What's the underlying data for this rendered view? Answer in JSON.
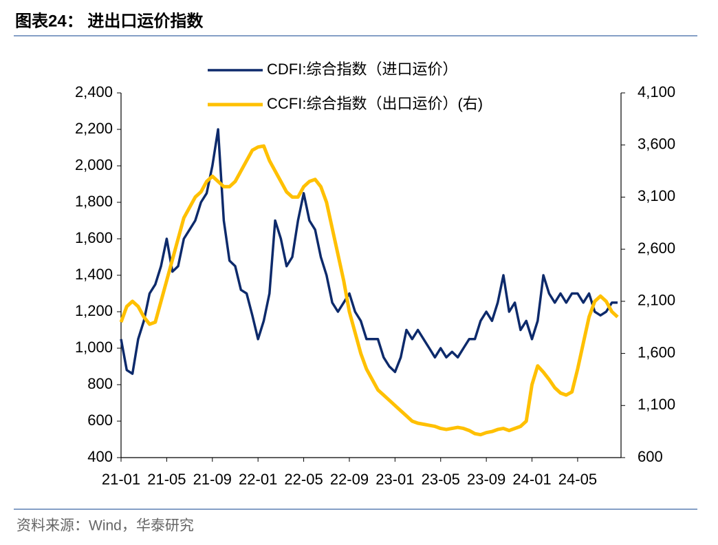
{
  "chart_data": {
    "type": "line",
    "title": "图表24：  进出口运价指数",
    "source": "资料来源：Wind，华泰研究",
    "categories": [
      "21-01",
      null,
      null,
      null,
      null,
      null,
      null,
      null,
      "21-05",
      null,
      null,
      null,
      null,
      null,
      null,
      null,
      "21-09",
      null,
      null,
      null,
      null,
      null,
      null,
      null,
      "22-01",
      null,
      null,
      null,
      null,
      null,
      null,
      null,
      "22-05",
      null,
      null,
      null,
      null,
      null,
      null,
      null,
      "22-09",
      null,
      null,
      null,
      null,
      null,
      null,
      null,
      "23-01",
      null,
      null,
      null,
      null,
      null,
      null,
      null,
      "23-05",
      null,
      null,
      null,
      null,
      null,
      null,
      null,
      "23-09",
      null,
      null,
      null,
      null,
      null,
      null,
      null,
      "24-01",
      null,
      null,
      null,
      null,
      null,
      null,
      null,
      "24-05",
      null,
      null,
      null,
      null,
      null,
      null,
      null
    ],
    "series": [
      {
        "name": "CDFI:综合指数（进口运价）",
        "color": "#0d2a6b",
        "axis": "y",
        "values": [
          1050,
          880,
          860,
          1050,
          1150,
          1300,
          1350,
          1450,
          1600,
          1420,
          1450,
          1600,
          1650,
          1700,
          1800,
          1850,
          2000,
          2200,
          1700,
          1480,
          1450,
          1320,
          1300,
          1180,
          1050,
          1150,
          1300,
          1700,
          1600,
          1450,
          1500,
          1700,
          1850,
          1700,
          1650,
          1500,
          1400,
          1250,
          1200,
          1250,
          1300,
          1200,
          1150,
          1050,
          1050,
          1050,
          950,
          900,
          870,
          950,
          1100,
          1050,
          1100,
          1050,
          1000,
          950,
          1000,
          950,
          980,
          950,
          1000,
          1050,
          1050,
          1150,
          1200,
          1150,
          1250,
          1400,
          1200,
          1250,
          1100,
          1150,
          1050,
          1150,
          1400,
          1300,
          1250,
          1300,
          1250,
          1300,
          1300,
          1250,
          1300,
          1200,
          1180,
          1200,
          1250,
          1250
        ]
      },
      {
        "name": "CCFI:综合指数（出口运价）(右)",
        "color": "#ffc000",
        "axis": "y2",
        "values": [
          1900,
          2050,
          2100,
          2050,
          1950,
          1880,
          1900,
          2100,
          2300,
          2500,
          2700,
          2900,
          3000,
          3100,
          3150,
          3250,
          3300,
          3250,
          3200,
          3200,
          3250,
          3350,
          3450,
          3550,
          3580,
          3590,
          3450,
          3350,
          3250,
          3150,
          3100,
          3100,
          3200,
          3250,
          3270,
          3200,
          3050,
          2800,
          2550,
          2300,
          2000,
          1800,
          1600,
          1450,
          1350,
          1250,
          1200,
          1150,
          1100,
          1050,
          1000,
          950,
          930,
          920,
          910,
          900,
          880,
          870,
          880,
          890,
          880,
          860,
          830,
          820,
          840,
          850,
          870,
          880,
          860,
          880,
          900,
          950,
          1300,
          1480,
          1420,
          1350,
          1270,
          1220,
          1200,
          1230,
          1450,
          1700,
          1950,
          2100,
          2150,
          2100,
          2000,
          1950
        ]
      }
    ],
    "ylim": [
      400,
      2400
    ],
    "yticks": [
      400,
      600,
      800,
      {
        "value": 1000,
        "label": "1,000"
      },
      {
        "value": 1200,
        "label": "1,200"
      },
      {
        "value": 1400,
        "label": "1,400"
      },
      {
        "value": 1600,
        "label": "1,600"
      },
      {
        "value": 1800,
        "label": "1,800"
      },
      {
        "value": 2000,
        "label": "2,000"
      },
      {
        "value": 2200,
        "label": "2,200"
      },
      {
        "value": 2400,
        "label": "2,400"
      }
    ],
    "y2lim": [
      600,
      4100
    ],
    "y2ticks": [
      600,
      {
        "value": 1100,
        "label": "1,100"
      },
      {
        "value": 1600,
        "label": "1,600"
      },
      {
        "value": 2100,
        "label": "2,100"
      },
      {
        "value": 2600,
        "label": "2,600"
      },
      {
        "value": 3100,
        "label": "3,100"
      },
      {
        "value": 3600,
        "label": "3,600"
      },
      {
        "value": 4100,
        "label": "4,100"
      }
    ],
    "grid": false,
    "legend": "top"
  }
}
